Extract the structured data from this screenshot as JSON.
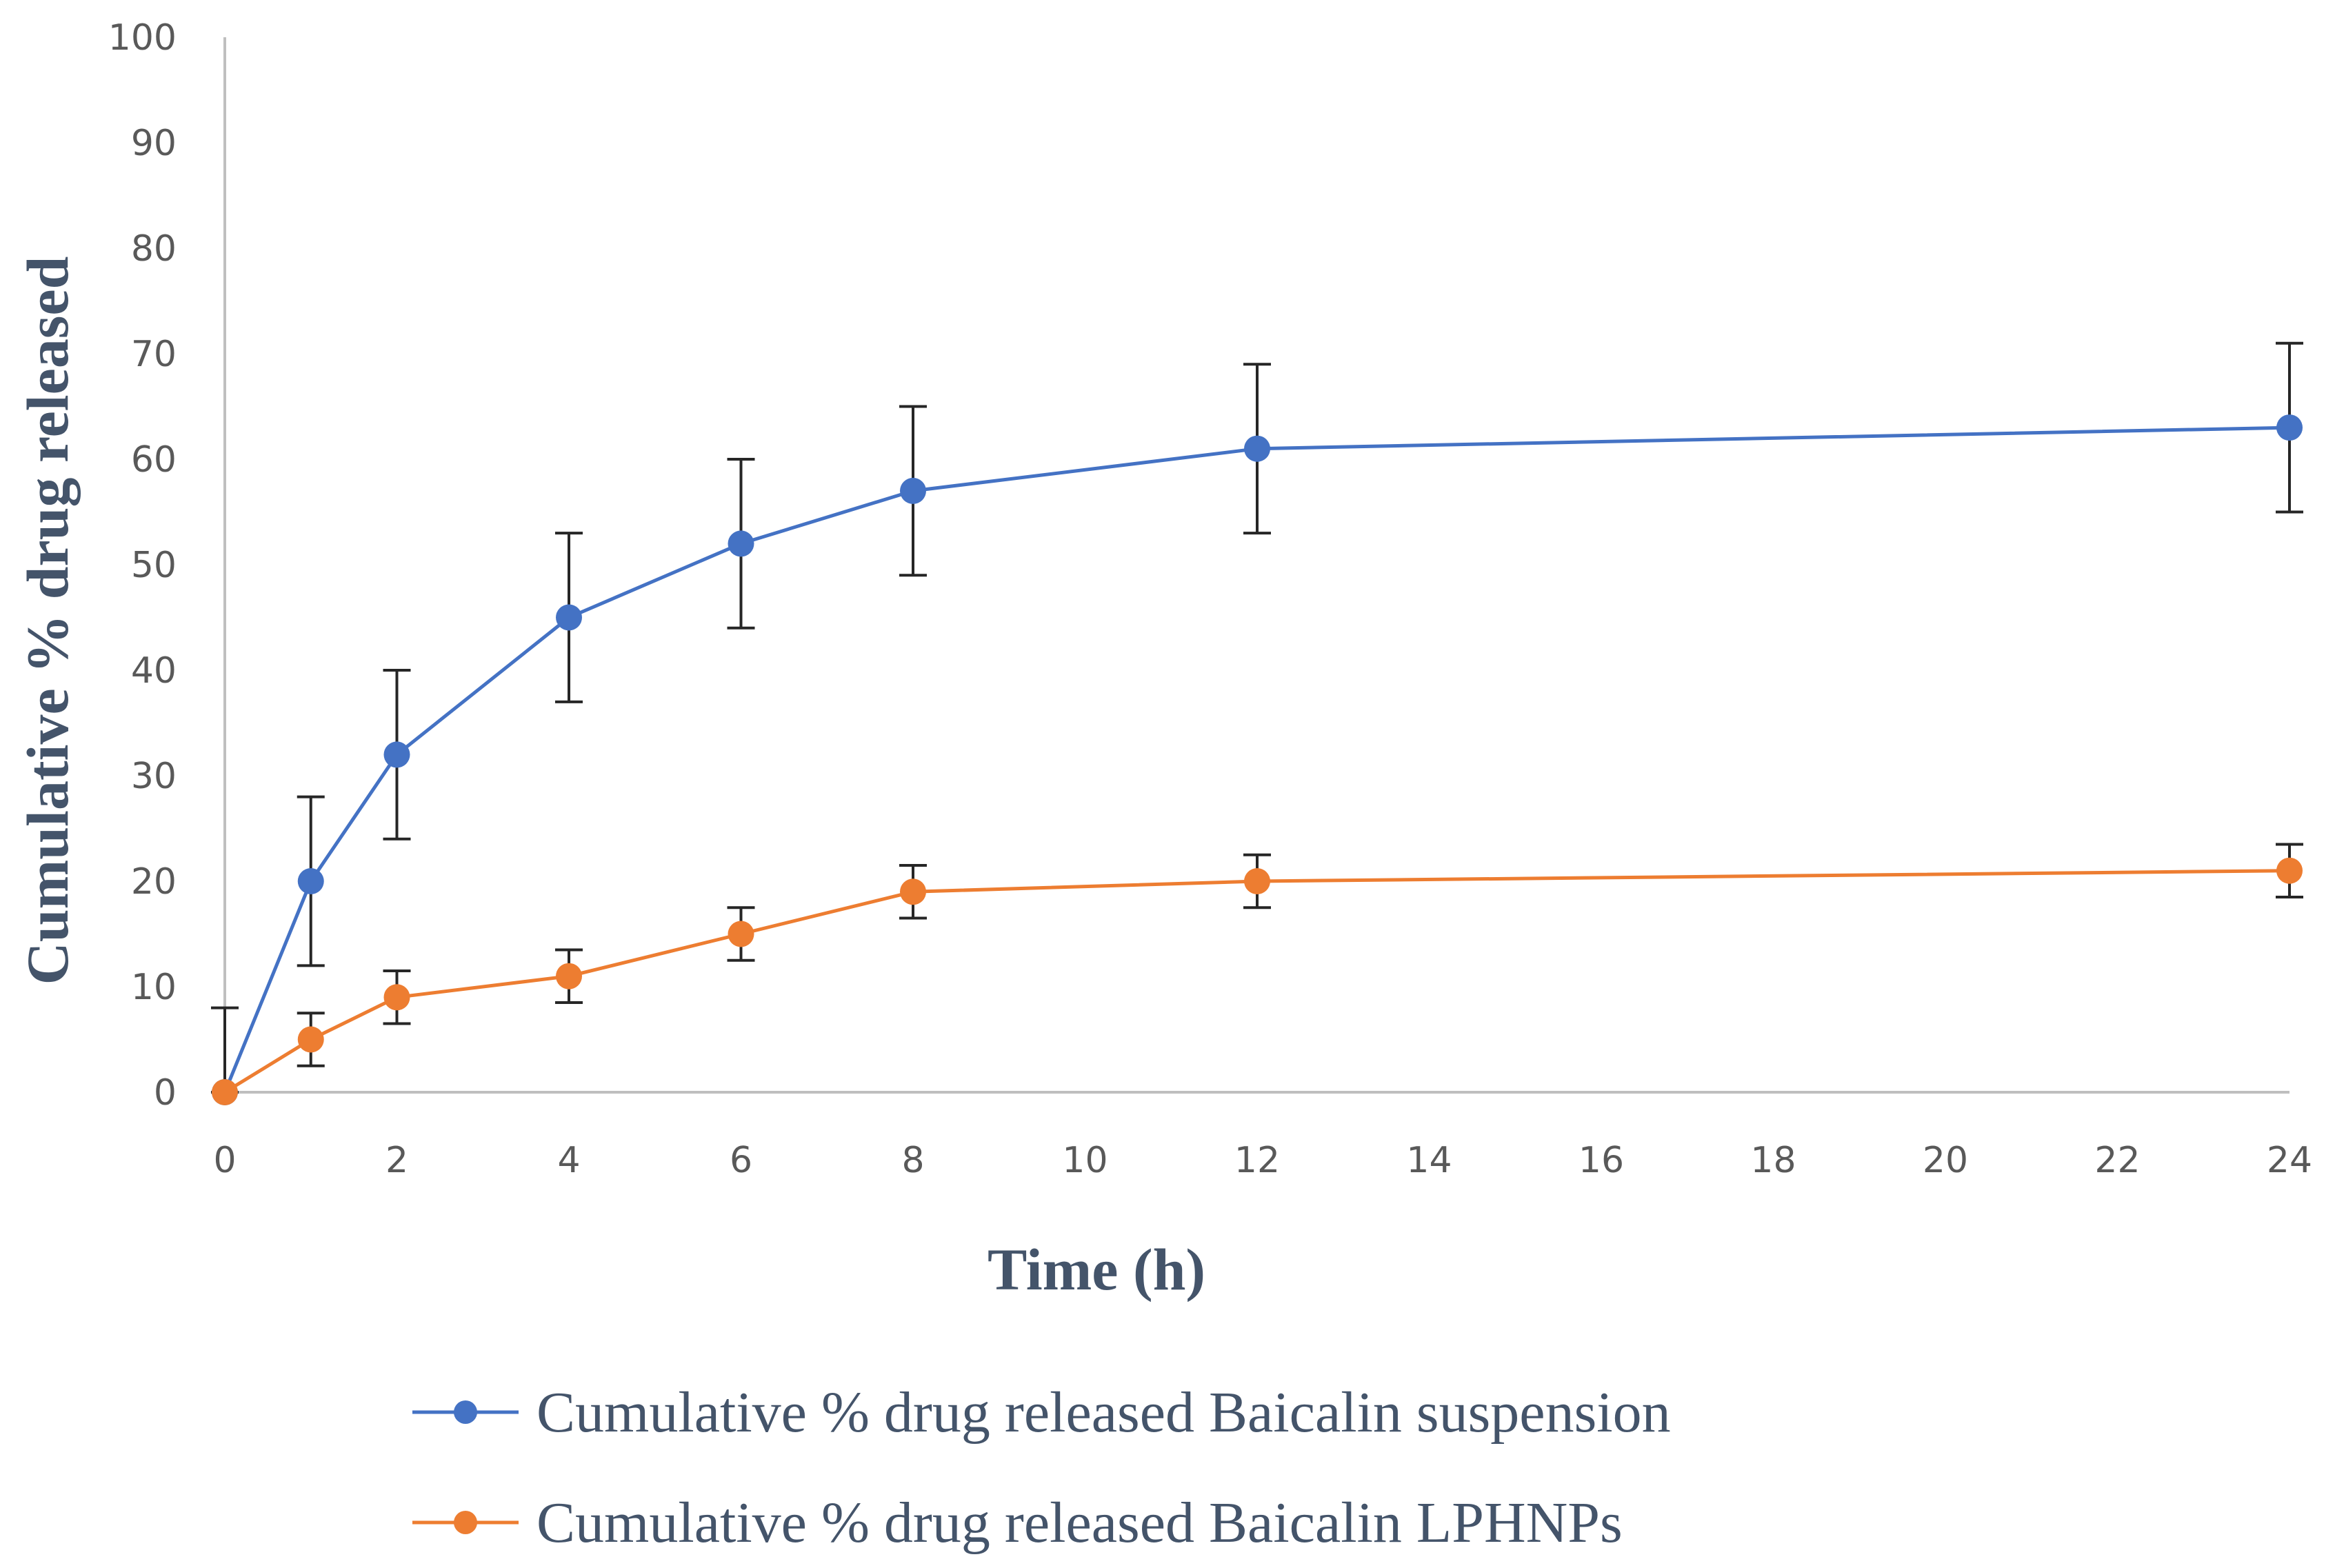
{
  "chart_data": {
    "type": "line",
    "title": "",
    "xlabel": "Time (h)",
    "ylabel": "Cumulative  % drug  released",
    "xlim": [
      0,
      24
    ],
    "ylim": [
      0,
      100
    ],
    "x_ticks": [
      0,
      2,
      4,
      6,
      8,
      10,
      12,
      14,
      16,
      18,
      20,
      22,
      24
    ],
    "y_ticks": [
      0,
      10,
      20,
      30,
      40,
      50,
      60,
      70,
      80,
      90,
      100
    ],
    "grid": false,
    "legend_position": "bottom",
    "series": [
      {
        "name": "Cumulative % drug released  Baicalin suspension",
        "color": "#4472c4",
        "x": [
          0,
          1,
          2,
          4,
          6,
          8,
          12,
          24
        ],
        "values": [
          0,
          20,
          32,
          45,
          52,
          57,
          61,
          63
        ],
        "error": [
          8,
          8,
          8,
          8,
          8,
          8,
          8,
          8
        ]
      },
      {
        "name": "Cumulative % drug released  Baicalin LPHNPs",
        "color": "#ed7d31",
        "x": [
          0,
          1,
          2,
          4,
          6,
          8,
          12,
          24
        ],
        "values": [
          0,
          5,
          9,
          11,
          15,
          19,
          20,
          21
        ],
        "error": [
          0,
          2.5,
          2.5,
          2.5,
          2.5,
          2.5,
          2.5,
          2.5
        ]
      }
    ],
    "error_bar_color": "#262626"
  }
}
